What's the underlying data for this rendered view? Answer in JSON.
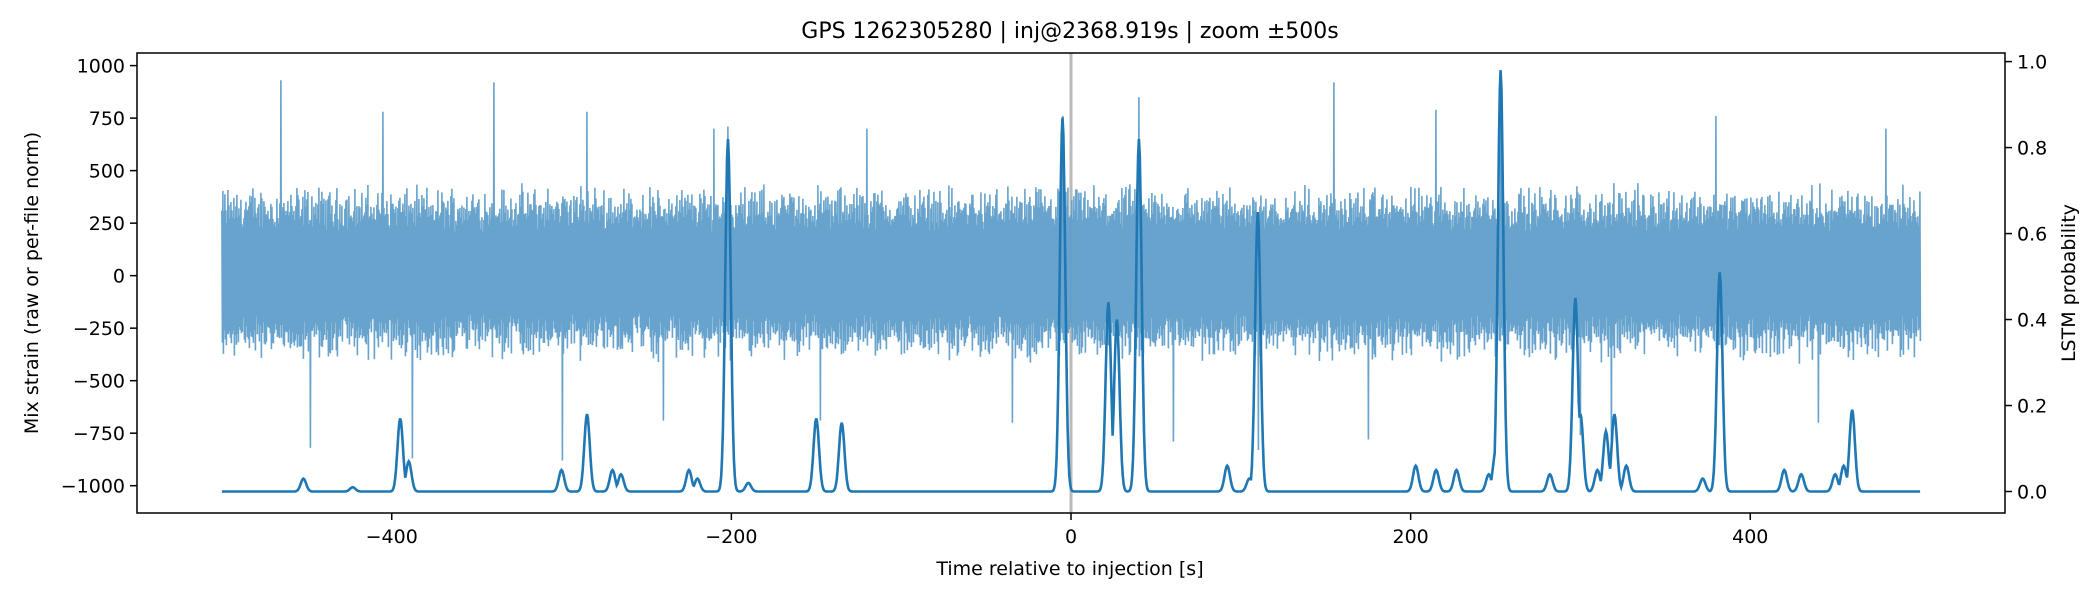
{
  "chart_data": {
    "type": "line",
    "title": "GPS 1262305280 | inj@2368.919s | zoom ±500s",
    "xlabel": "Time relative to injection [s]",
    "ylabel": "Mix strain (raw or per-file norm)",
    "y2label": "LSTM probability",
    "xlim": [
      -550,
      550
    ],
    "ylim": [
      -1130,
      1060
    ],
    "y2lim": [
      -0.05,
      1.02
    ],
    "x_ticks": [
      -400,
      -200,
      0,
      200,
      400
    ],
    "x_tick_labels": [
      "−400",
      "−200",
      "0",
      "200",
      "400"
    ],
    "y_ticks": [
      1000,
      750,
      500,
      250,
      0,
      -250,
      -500,
      -750,
      -1000
    ],
    "y_tick_labels": [
      "1000",
      "750",
      "500",
      "250",
      "0",
      "−250",
      "−500",
      "−750",
      "−1000"
    ],
    "y2_ticks": [
      1.0,
      0.8,
      0.6,
      0.4,
      0.2,
      0.0
    ],
    "y2_tick_labels": [
      "1.0",
      "0.8",
      "0.6",
      "0.4",
      "0.2",
      "0.0"
    ],
    "injection_marker_x": 0,
    "grid": false,
    "series": [
      {
        "kind": "strain",
        "axis": "left",
        "color": "#5f9ec9",
        "x_range": [
          -500,
          500
        ],
        "typical_band": [
          -420,
          450
        ],
        "spikes": [
          [
            -465,
            930
          ],
          [
            -448,
            -820
          ],
          [
            -405,
            780
          ],
          [
            -388,
            -870
          ],
          [
            -340,
            920
          ],
          [
            -300,
            -880
          ],
          [
            -285,
            780
          ],
          [
            -240,
            -690
          ],
          [
            -210,
            700
          ],
          [
            -202,
            710
          ],
          [
            -148,
            -690
          ],
          [
            -120,
            700
          ],
          [
            -35,
            -700
          ],
          [
            -5,
            760
          ],
          [
            40,
            850
          ],
          [
            60,
            -790
          ],
          [
            110,
            -830
          ],
          [
            155,
            920
          ],
          [
            175,
            -780
          ],
          [
            215,
            790
          ],
          [
            253,
            965
          ],
          [
            300,
            -760
          ],
          [
            318,
            -780
          ],
          [
            380,
            760
          ],
          [
            440,
            -700
          ],
          [
            480,
            700
          ]
        ]
      },
      {
        "kind": "probability",
        "axis": "right",
        "color": "#1f77b4",
        "baseline": 0.0,
        "peaks": [
          [
            -452,
            0.03
          ],
          [
            -423,
            0.01
          ],
          [
            -395,
            0.17
          ],
          [
            -390,
            0.07
          ],
          [
            -300,
            0.05
          ],
          [
            -285,
            0.18
          ],
          [
            -270,
            0.05
          ],
          [
            -265,
            0.04
          ],
          [
            -225,
            0.05
          ],
          [
            -220,
            0.03
          ],
          [
            -202,
            0.82
          ],
          [
            -190,
            0.02
          ],
          [
            -150,
            0.17
          ],
          [
            -135,
            0.16
          ],
          [
            -5,
            0.87
          ],
          [
            22,
            0.44
          ],
          [
            27,
            0.4
          ],
          [
            40,
            0.82
          ],
          [
            92,
            0.06
          ],
          [
            105,
            0.03
          ],
          [
            110,
            0.65
          ],
          [
            203,
            0.06
          ],
          [
            215,
            0.05
          ],
          [
            227,
            0.05
          ],
          [
            246,
            0.04
          ],
          [
            250,
            0.09
          ],
          [
            253,
            0.98
          ],
          [
            282,
            0.04
          ],
          [
            297,
            0.45
          ],
          [
            300,
            0.18
          ],
          [
            310,
            0.05
          ],
          [
            315,
            0.14
          ],
          [
            320,
            0.18
          ],
          [
            327,
            0.06
          ],
          [
            372,
            0.03
          ],
          [
            382,
            0.51
          ],
          [
            420,
            0.05
          ],
          [
            430,
            0.04
          ],
          [
            450,
            0.04
          ],
          [
            455,
            0.06
          ],
          [
            460,
            0.19
          ]
        ]
      }
    ]
  }
}
